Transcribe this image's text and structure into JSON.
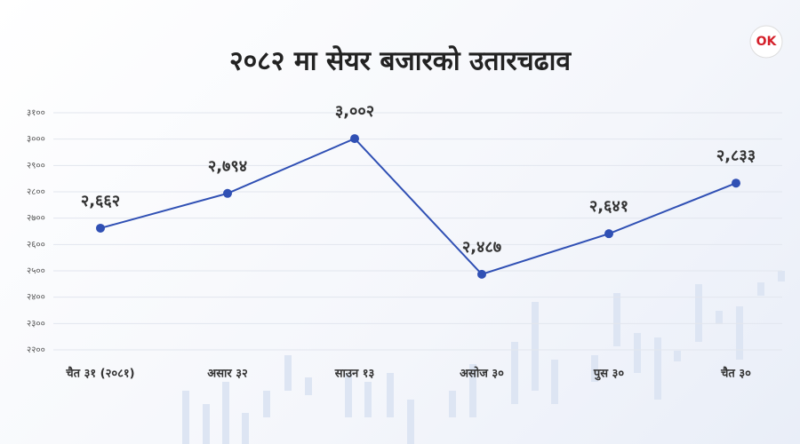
{
  "logo": "OK",
  "chart_data": {
    "type": "line",
    "title": "२०८२ मा सेयर बजारको उतारचढाव",
    "categories": [
      "चैत ३१ (२०८१)",
      "असार ३२",
      "साउन १३",
      "असोज ३०",
      "पुस ३०",
      "चैत ३०"
    ],
    "values": [
      2662,
      2794,
      3002,
      2487,
      2641,
      2833
    ],
    "value_labels": [
      "२,६६२",
      "२,७९४",
      "३,००२",
      "२,४८७",
      "२,६४१",
      "२,८३३"
    ],
    "color": "#3050b4",
    "ylim": [
      2200,
      3100
    ],
    "yticks": [
      {
        "value": 2200,
        "label": "२२००"
      },
      {
        "value": 2300,
        "label": "२३००"
      },
      {
        "value": 2400,
        "label": "२४००"
      },
      {
        "value": 2500,
        "label": "२५००"
      },
      {
        "value": 2600,
        "label": "२६००"
      },
      {
        "value": 2700,
        "label": "२७००"
      },
      {
        "value": 2800,
        "label": "२८००"
      },
      {
        "value": 2900,
        "label": "२९००"
      },
      {
        "value": 3000,
        "label": "३०००"
      },
      {
        "value": 3100,
        "label": "३१००"
      }
    ],
    "grid": true
  }
}
